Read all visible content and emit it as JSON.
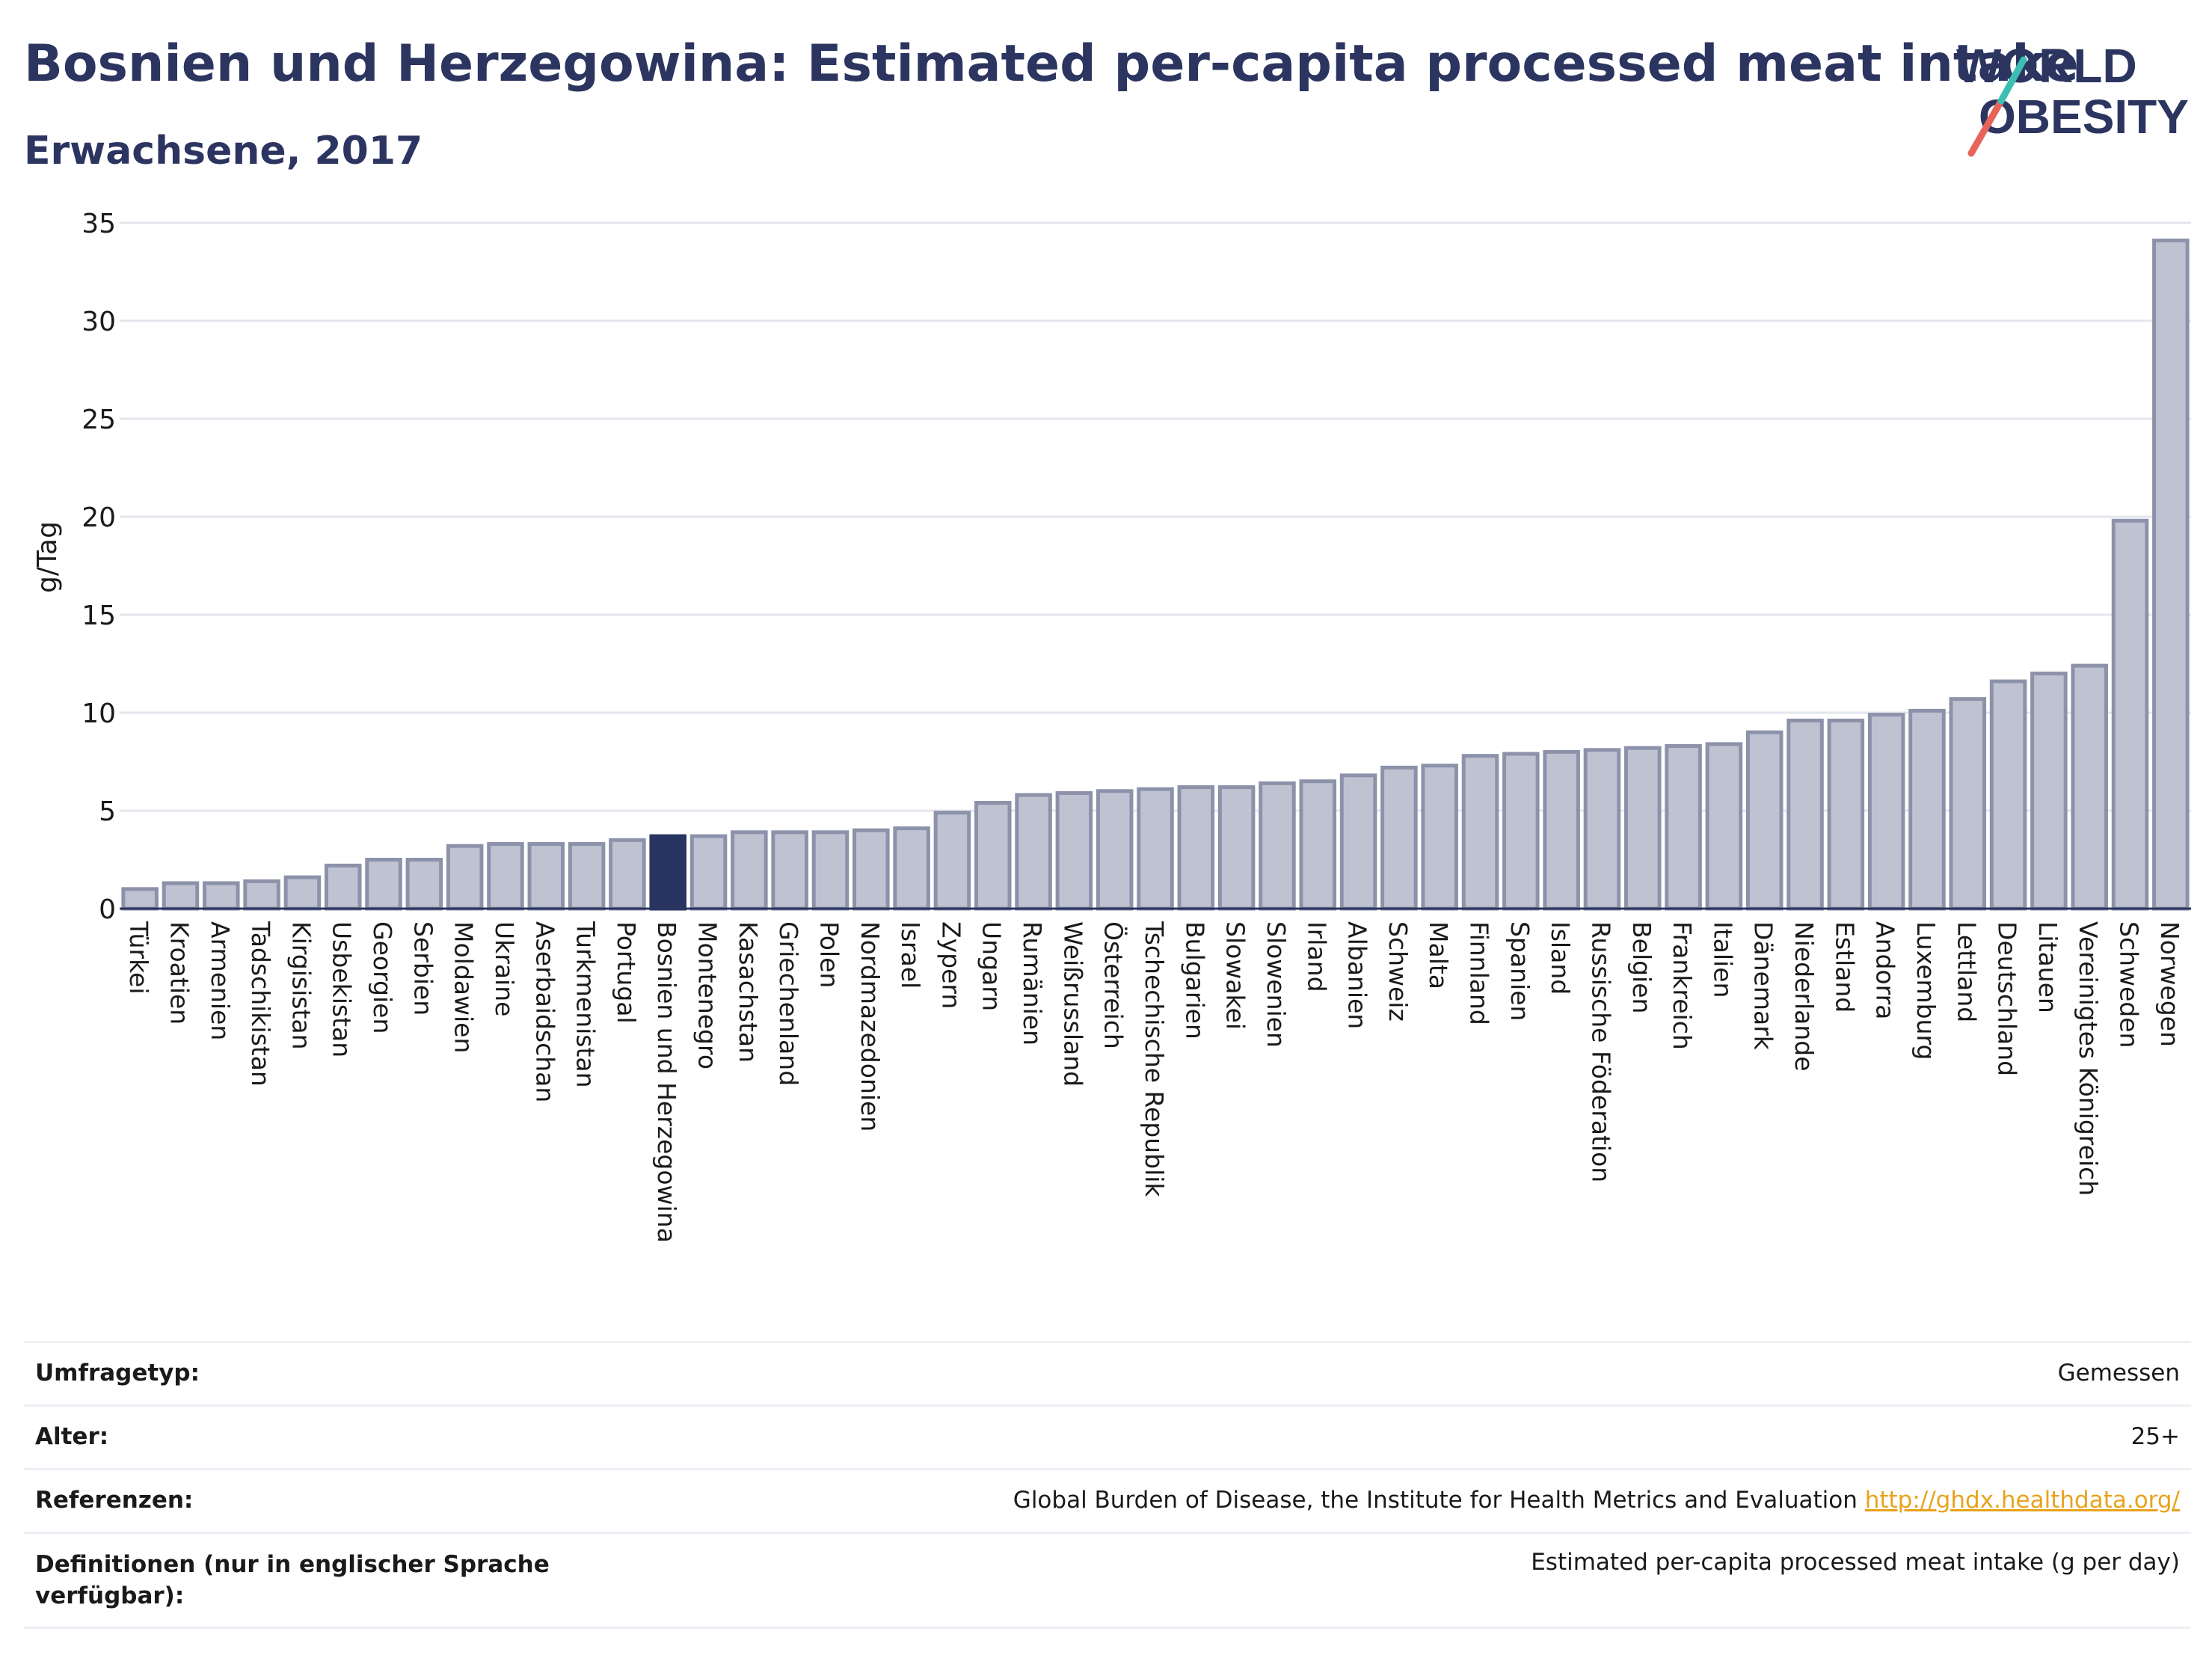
{
  "title": "Bosnien und Herzegowina: Estimated per-capita processed meat intake",
  "subtitle": "Erwachsene, 2017",
  "logo": {
    "line1": "WORLD",
    "line2": "OBESITY"
  },
  "colors": {
    "highlight": "#283561",
    "bar": "#bfc3d1",
    "bar_stroke": "#8c92aa",
    "accent_red": "#e8645a",
    "accent_teal": "#3cbfb2",
    "link": "#e8a31d"
  },
  "chart_data": {
    "type": "bar",
    "ylabel": "g/Tag",
    "ylim": [
      0,
      35
    ],
    "yticks": [
      0,
      5,
      10,
      15,
      20,
      25,
      30,
      35
    ],
    "highlight": "Bosnien und Herzegowina",
    "grid": true,
    "categories": [
      "Türkei",
      "Kroatien",
      "Armenien",
      "Tadschikistan",
      "Kirgisistan",
      "Usbekistan",
      "Georgien",
      "Serbien",
      "Moldawien",
      "Ukraine",
      "Aserbaidschan",
      "Turkmenistan",
      "Portugal",
      "Bosnien und Herzegowina",
      "Montenegro",
      "Kasachstan",
      "Griechenland",
      "Polen",
      "Nordmazedonien",
      "Israel",
      "Zypern",
      "Ungarn",
      "Rumänien",
      "Weißrussland",
      "Österreich",
      "Tschechische Republik",
      "Bulgarien",
      "Slowakei",
      "Slowenien",
      "Irland",
      "Albanien",
      "Schweiz",
      "Malta",
      "Finnland",
      "Spanien",
      "Island",
      "Russische Föderation",
      "Belgien",
      "Frankreich",
      "Italien",
      "Dänemark",
      "Niederlande",
      "Estland",
      "Andorra",
      "Luxemburg",
      "Lettland",
      "Deutschland",
      "Litauen",
      "Vereinigtes Königreich",
      "Schweden",
      "Norwegen"
    ],
    "values": [
      1.0,
      1.3,
      1.3,
      1.4,
      1.6,
      2.2,
      2.5,
      2.5,
      3.2,
      3.3,
      3.3,
      3.3,
      3.5,
      3.7,
      3.7,
      3.9,
      3.9,
      3.9,
      4.0,
      4.1,
      4.9,
      5.4,
      5.8,
      5.9,
      6.0,
      6.1,
      6.2,
      6.2,
      6.4,
      6.5,
      6.8,
      7.2,
      7.3,
      7.8,
      7.9,
      8.0,
      8.1,
      8.2,
      8.3,
      8.4,
      9.0,
      9.6,
      9.6,
      9.9,
      10.1,
      10.7,
      11.6,
      12.0,
      12.4,
      19.8,
      34.1
    ]
  },
  "table": {
    "rows": [
      {
        "label": "Umfragetyp:",
        "value": "Gemessen"
      },
      {
        "label": "Alter:",
        "value": "25+"
      },
      {
        "label": "Referenzen:",
        "value": "Global Burden of Disease, the Institute for Health Metrics and Evaluation",
        "link": "http://ghdx.healthdata.org/"
      },
      {
        "label": "Definitionen (nur in englischer Sprache verfügbar):",
        "value": "Estimated per-capita processed meat intake (g per day)"
      }
    ]
  }
}
